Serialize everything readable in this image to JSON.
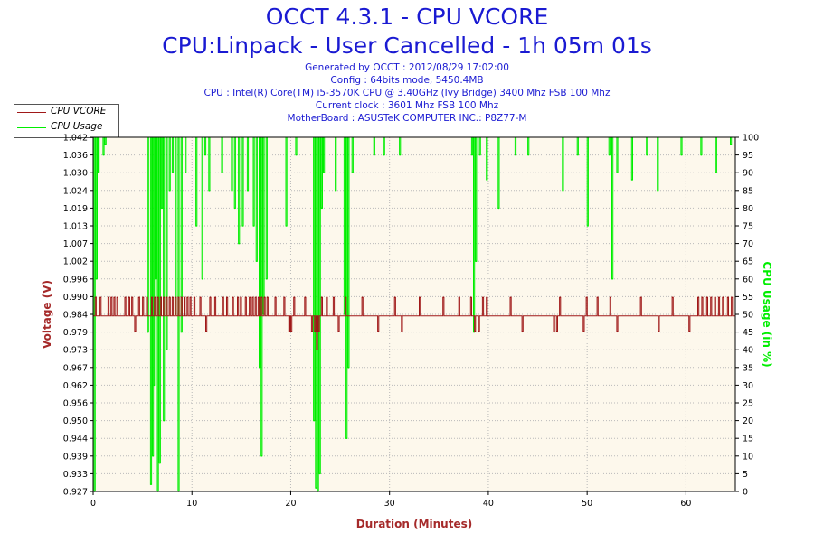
{
  "header": {
    "title": "OCCT 4.3.1 - CPU VCORE",
    "subtitle": "CPU:Linpack - User Cancelled - 1h 05m 01s",
    "info_lines": [
      "Generated by OCCT : 2012/08/29 17:02:00",
      "Config : 64bits mode, 5450.4MB",
      "CPU : Intel(R) Core(TM) i5-3570K CPU @ 3.40GHz (Ivy Bridge) 3400 Mhz FSB 100 Mhz",
      "Current clock : 3601 Mhz FSB 100 Mhz",
      "MotherBoard : ASUSTeK COMPUTER INC.: P8Z77-M"
    ]
  },
  "legend": {
    "items": [
      {
        "label": "CPU VCORE",
        "color": "#a01818"
      },
      {
        "label": "CPU Usage",
        "color": "#00ee00"
      }
    ]
  },
  "colors": {
    "plot_bg": "#fdf8ec",
    "grid": "#b9b9b9",
    "vcore": "#a01818",
    "usage": "#00ee00",
    "left_axis_label": "#a52a2a",
    "right_axis_label": "#00ee00",
    "x_axis_label": "#a52a2a"
  },
  "chart_data": {
    "type": "line",
    "title": "OCCT 4.3.1 - CPU VCORE",
    "xlabel": "Duration (Minutes)",
    "ylabel_left": "Voltage (V)",
    "ylabel_right": "CPU Usage (in %)",
    "xlim": [
      0,
      65
    ],
    "x_ticks": [
      0,
      10,
      20,
      30,
      40,
      50,
      60
    ],
    "ylim_left": [
      0.927,
      1.042
    ],
    "y_ticks_left": [
      "0.927",
      "0.933",
      "0.939",
      "0.944",
      "0.950",
      "0.956",
      "0.962",
      "0.967",
      "0.973",
      "0.979",
      "0.984",
      "0.990",
      "0.996",
      "1.002",
      "1.007",
      "1.013",
      "1.019",
      "1.024",
      "1.030",
      "1.036",
      "1.042"
    ],
    "ylim_right": [
      0,
      100
    ],
    "y_ticks_right": [
      0,
      5,
      10,
      15,
      20,
      25,
      30,
      35,
      40,
      45,
      50,
      55,
      60,
      65,
      70,
      75,
      80,
      85,
      90,
      95,
      100
    ],
    "grid": true,
    "legend_position": "top-left",
    "series": [
      {
        "name": "CPU VCORE",
        "axis": "left",
        "baseline": 0.984,
        "x": [
          0.2,
          0.7,
          1.5,
          1.8,
          2.1,
          2.4,
          3.2,
          3.6,
          3.9,
          4.2,
          4.6,
          5.0,
          5.4,
          5.9,
          6.2,
          6.5,
          6.8,
          7.1,
          7.4,
          7.7,
          8.0,
          8.3,
          8.6,
          8.9,
          9.2,
          9.5,
          9.8,
          10.2,
          10.8,
          11.4,
          11.8,
          12.3,
          13.1,
          13.5,
          14.1,
          14.6,
          14.9,
          15.4,
          15.8,
          16.1,
          16.4,
          16.7,
          17.0,
          17.3,
          17.6,
          18.4,
          19.3,
          19.8,
          20.0,
          20.3,
          21.4,
          22.1,
          22.4,
          22.6,
          22.8,
          23.1,
          23.6,
          24.3,
          24.8,
          25.5,
          27.2,
          28.8,
          30.5,
          31.2,
          33.0,
          35.4,
          37.0,
          38.2,
          38.6,
          39.0,
          39.4,
          39.8,
          42.2,
          43.4,
          46.6,
          46.9,
          47.2,
          49.6,
          49.9,
          51.0,
          52.3,
          53.0,
          55.4,
          57.2,
          58.6,
          60.3,
          61.2,
          61.6,
          62.1,
          62.5,
          62.9,
          63.3,
          63.7,
          64.2,
          64.6
        ],
        "y": [
          0.99,
          0.99,
          0.99,
          0.99,
          0.99,
          0.99,
          0.99,
          0.99,
          0.99,
          0.979,
          0.99,
          0.99,
          0.99,
          0.99,
          0.99,
          0.99,
          0.99,
          0.99,
          0.99,
          0.99,
          0.99,
          0.99,
          0.99,
          0.99,
          0.99,
          0.99,
          0.99,
          0.99,
          0.99,
          0.979,
          0.99,
          0.99,
          0.99,
          0.99,
          0.99,
          0.99,
          0.99,
          0.99,
          0.99,
          0.99,
          0.99,
          0.99,
          0.99,
          0.99,
          0.99,
          0.99,
          0.99,
          0.979,
          0.979,
          0.99,
          0.99,
          0.979,
          0.979,
          0.973,
          0.979,
          0.99,
          0.99,
          0.99,
          0.979,
          0.99,
          0.99,
          0.979,
          0.99,
          0.979,
          0.99,
          0.99,
          0.99,
          0.99,
          0.979,
          0.979,
          0.99,
          0.99,
          0.99,
          0.979,
          0.979,
          0.979,
          0.99,
          0.979,
          0.99,
          0.99,
          0.99,
          0.979,
          0.99,
          0.979,
          0.99,
          0.979,
          0.99,
          0.99,
          0.99,
          0.99,
          0.99,
          0.99,
          0.99,
          0.99,
          0.99
        ]
      },
      {
        "name": "CPU Usage",
        "axis": "right",
        "baseline": 100,
        "x": [
          0.1,
          0.3,
          0.5,
          1.0,
          1.2,
          5.5,
          5.8,
          6.0,
          6.1,
          6.3,
          6.5,
          6.7,
          6.9,
          7.1,
          7.4,
          7.7,
          8.0,
          8.3,
          8.6,
          8.9,
          9.3,
          10.4,
          11.0,
          11.3,
          11.7,
          13.0,
          14.0,
          14.3,
          14.7,
          15.1,
          15.6,
          16.2,
          16.5,
          16.8,
          17.0,
          17.2,
          17.5,
          19.5,
          20.5,
          22.3,
          22.5,
          22.7,
          22.9,
          23.1,
          23.3,
          24.5,
          25.4,
          25.6,
          25.8,
          26.2,
          28.4,
          29.4,
          31.0,
          38.3,
          38.5,
          38.7,
          39.1,
          39.8,
          41.0,
          42.7,
          44.0,
          47.5,
          49.0,
          50.0,
          52.2,
          52.5,
          53.0,
          54.5,
          56.0,
          57.1,
          59.5,
          61.5,
          63.0,
          64.5
        ],
        "y": [
          0,
          60,
          90,
          95,
          98,
          45,
          2,
          10,
          30,
          60,
          0,
          8,
          80,
          20,
          40,
          85,
          90,
          50,
          0,
          45,
          90,
          75,
          60,
          95,
          85,
          90,
          85,
          80,
          70,
          75,
          85,
          75,
          65,
          35,
          10,
          50,
          60,
          75,
          95,
          20,
          1,
          0,
          5,
          80,
          90,
          85,
          50,
          15,
          35,
          90,
          95,
          95,
          95,
          95,
          45,
          65,
          95,
          88,
          80,
          95,
          95,
          85,
          95,
          75,
          95,
          60,
          90,
          88,
          95,
          85,
          95,
          95,
          90,
          98
        ]
      }
    ]
  }
}
